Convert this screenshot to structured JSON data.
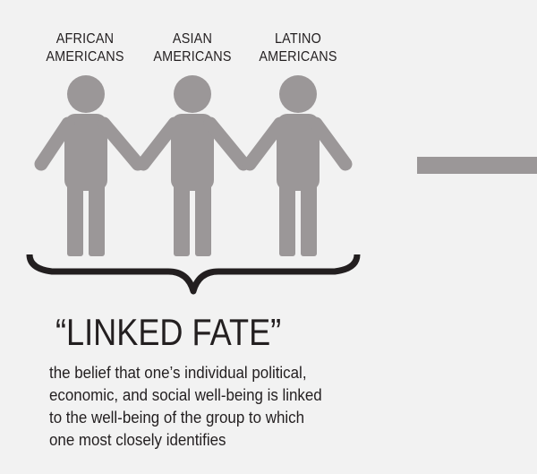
{
  "groups": [
    {
      "line1": "AFRICAN",
      "line2": "AMERICANS"
    },
    {
      "line1": "ASIAN",
      "line2": "AMERICANS"
    },
    {
      "line1": "LATINO",
      "line2": "AMERICANS"
    }
  ],
  "term": "“LINKED FATE”",
  "definition": [
    "the belief that one’s individual political,",
    "economic, and social well-being is linked",
    "to the well-being of the group to which",
    "one most closely identifies"
  ],
  "colors": {
    "background": "#f2f2f2",
    "figure": "#9b9798",
    "text": "#231f20",
    "brace": "#231f20"
  }
}
